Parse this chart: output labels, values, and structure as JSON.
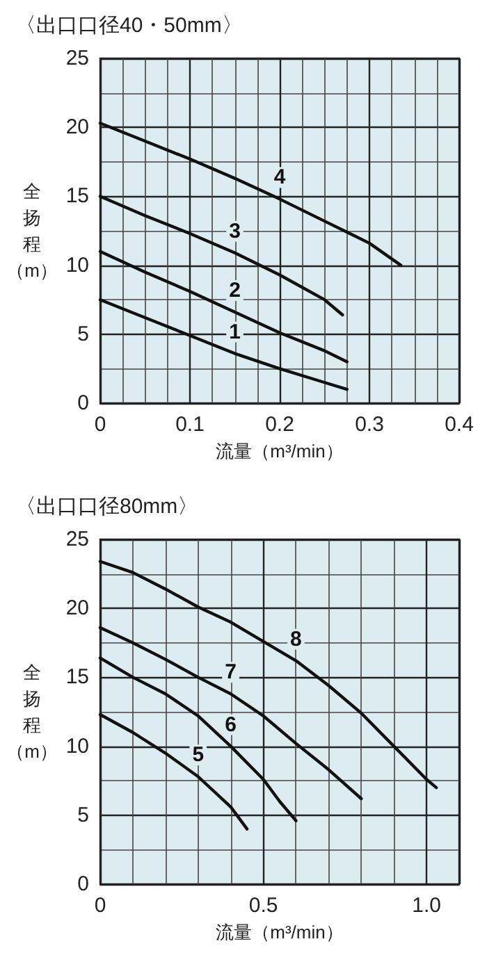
{
  "chart_data": [
    {
      "type": "line",
      "title": "〈出口口径40・50mm〉",
      "xlabel": "流量（m³/min）",
      "ylabel": "全扬程（m）",
      "xlim": [
        0,
        0.4
      ],
      "xticks": [
        0,
        0.1,
        0.2,
        0.3,
        0.4
      ],
      "ylim": [
        0,
        25
      ],
      "yticks": [
        0,
        5,
        10,
        15,
        20,
        25
      ],
      "grid": true,
      "marker": "none",
      "line_style": "solid",
      "series": [
        {
          "name": "1",
          "color": "#111111",
          "x": [
            0,
            0.05,
            0.1,
            0.15,
            0.2,
            0.25,
            0.275
          ],
          "values": [
            7.5,
            6.2,
            4.9,
            3.6,
            2.5,
            1.5,
            1.0
          ]
        },
        {
          "name": "2",
          "color": "#111111",
          "x": [
            0,
            0.05,
            0.1,
            0.15,
            0.2,
            0.25,
            0.275
          ],
          "values": [
            11,
            9.5,
            8.1,
            6.6,
            5.1,
            3.8,
            3.0
          ]
        },
        {
          "name": "3",
          "color": "#111111",
          "x": [
            0,
            0.05,
            0.1,
            0.15,
            0.2,
            0.25,
            0.27
          ],
          "values": [
            15,
            13.6,
            12.3,
            10.9,
            9.3,
            7.5,
            6.4
          ]
        },
        {
          "name": "4",
          "color": "#111111",
          "x": [
            0,
            0.05,
            0.1,
            0.15,
            0.2,
            0.25,
            0.3,
            0.335
          ],
          "values": [
            20.3,
            19,
            17.7,
            16.3,
            14.8,
            13.2,
            11.6,
            10
          ]
        }
      ]
    },
    {
      "type": "line",
      "title": "〈出口口径80mm〉",
      "xlabel": "流量（m³/min）",
      "ylabel": "全扬程（m）",
      "xlim": [
        0,
        1.1
      ],
      "xticks": [
        0,
        0.5,
        {
          "value": 1,
          "label": "1.0"
        }
      ],
      "ylim": [
        0,
        25
      ],
      "yticks": [
        0,
        5,
        10,
        15,
        20,
        25
      ],
      "grid": true,
      "marker": "none",
      "line_style": "solid",
      "series": [
        {
          "name": "5",
          "color": "#111111",
          "x": [
            0,
            0.1,
            0.2,
            0.3,
            0.4,
            0.45
          ],
          "values": [
            12.3,
            11,
            9.5,
            7.8,
            5.6,
            4
          ]
        },
        {
          "name": "6",
          "color": "#111111",
          "x": [
            0,
            0.1,
            0.2,
            0.3,
            0.4,
            0.5,
            0.55,
            0.6
          ],
          "values": [
            16.4,
            15,
            13.8,
            12.2,
            10,
            7.6,
            6,
            4.6
          ]
        },
        {
          "name": "7",
          "color": "#111111",
          "x": [
            0,
            0.1,
            0.2,
            0.3,
            0.4,
            0.5,
            0.6,
            0.7,
            0.8
          ],
          "values": [
            18.6,
            17.5,
            16.3,
            15,
            13.8,
            12.2,
            10.2,
            8.3,
            6.2
          ]
        },
        {
          "name": "8",
          "color": "#111111",
          "x": [
            0,
            0.1,
            0.2,
            0.3,
            0.4,
            0.5,
            0.6,
            0.7,
            0.8,
            0.9,
            1.0,
            1.03
          ],
          "values": [
            23.4,
            22.6,
            21.4,
            20.1,
            19,
            17.6,
            16.2,
            14.4,
            12.4,
            10,
            7.6,
            7
          ]
        }
      ]
    }
  ]
}
